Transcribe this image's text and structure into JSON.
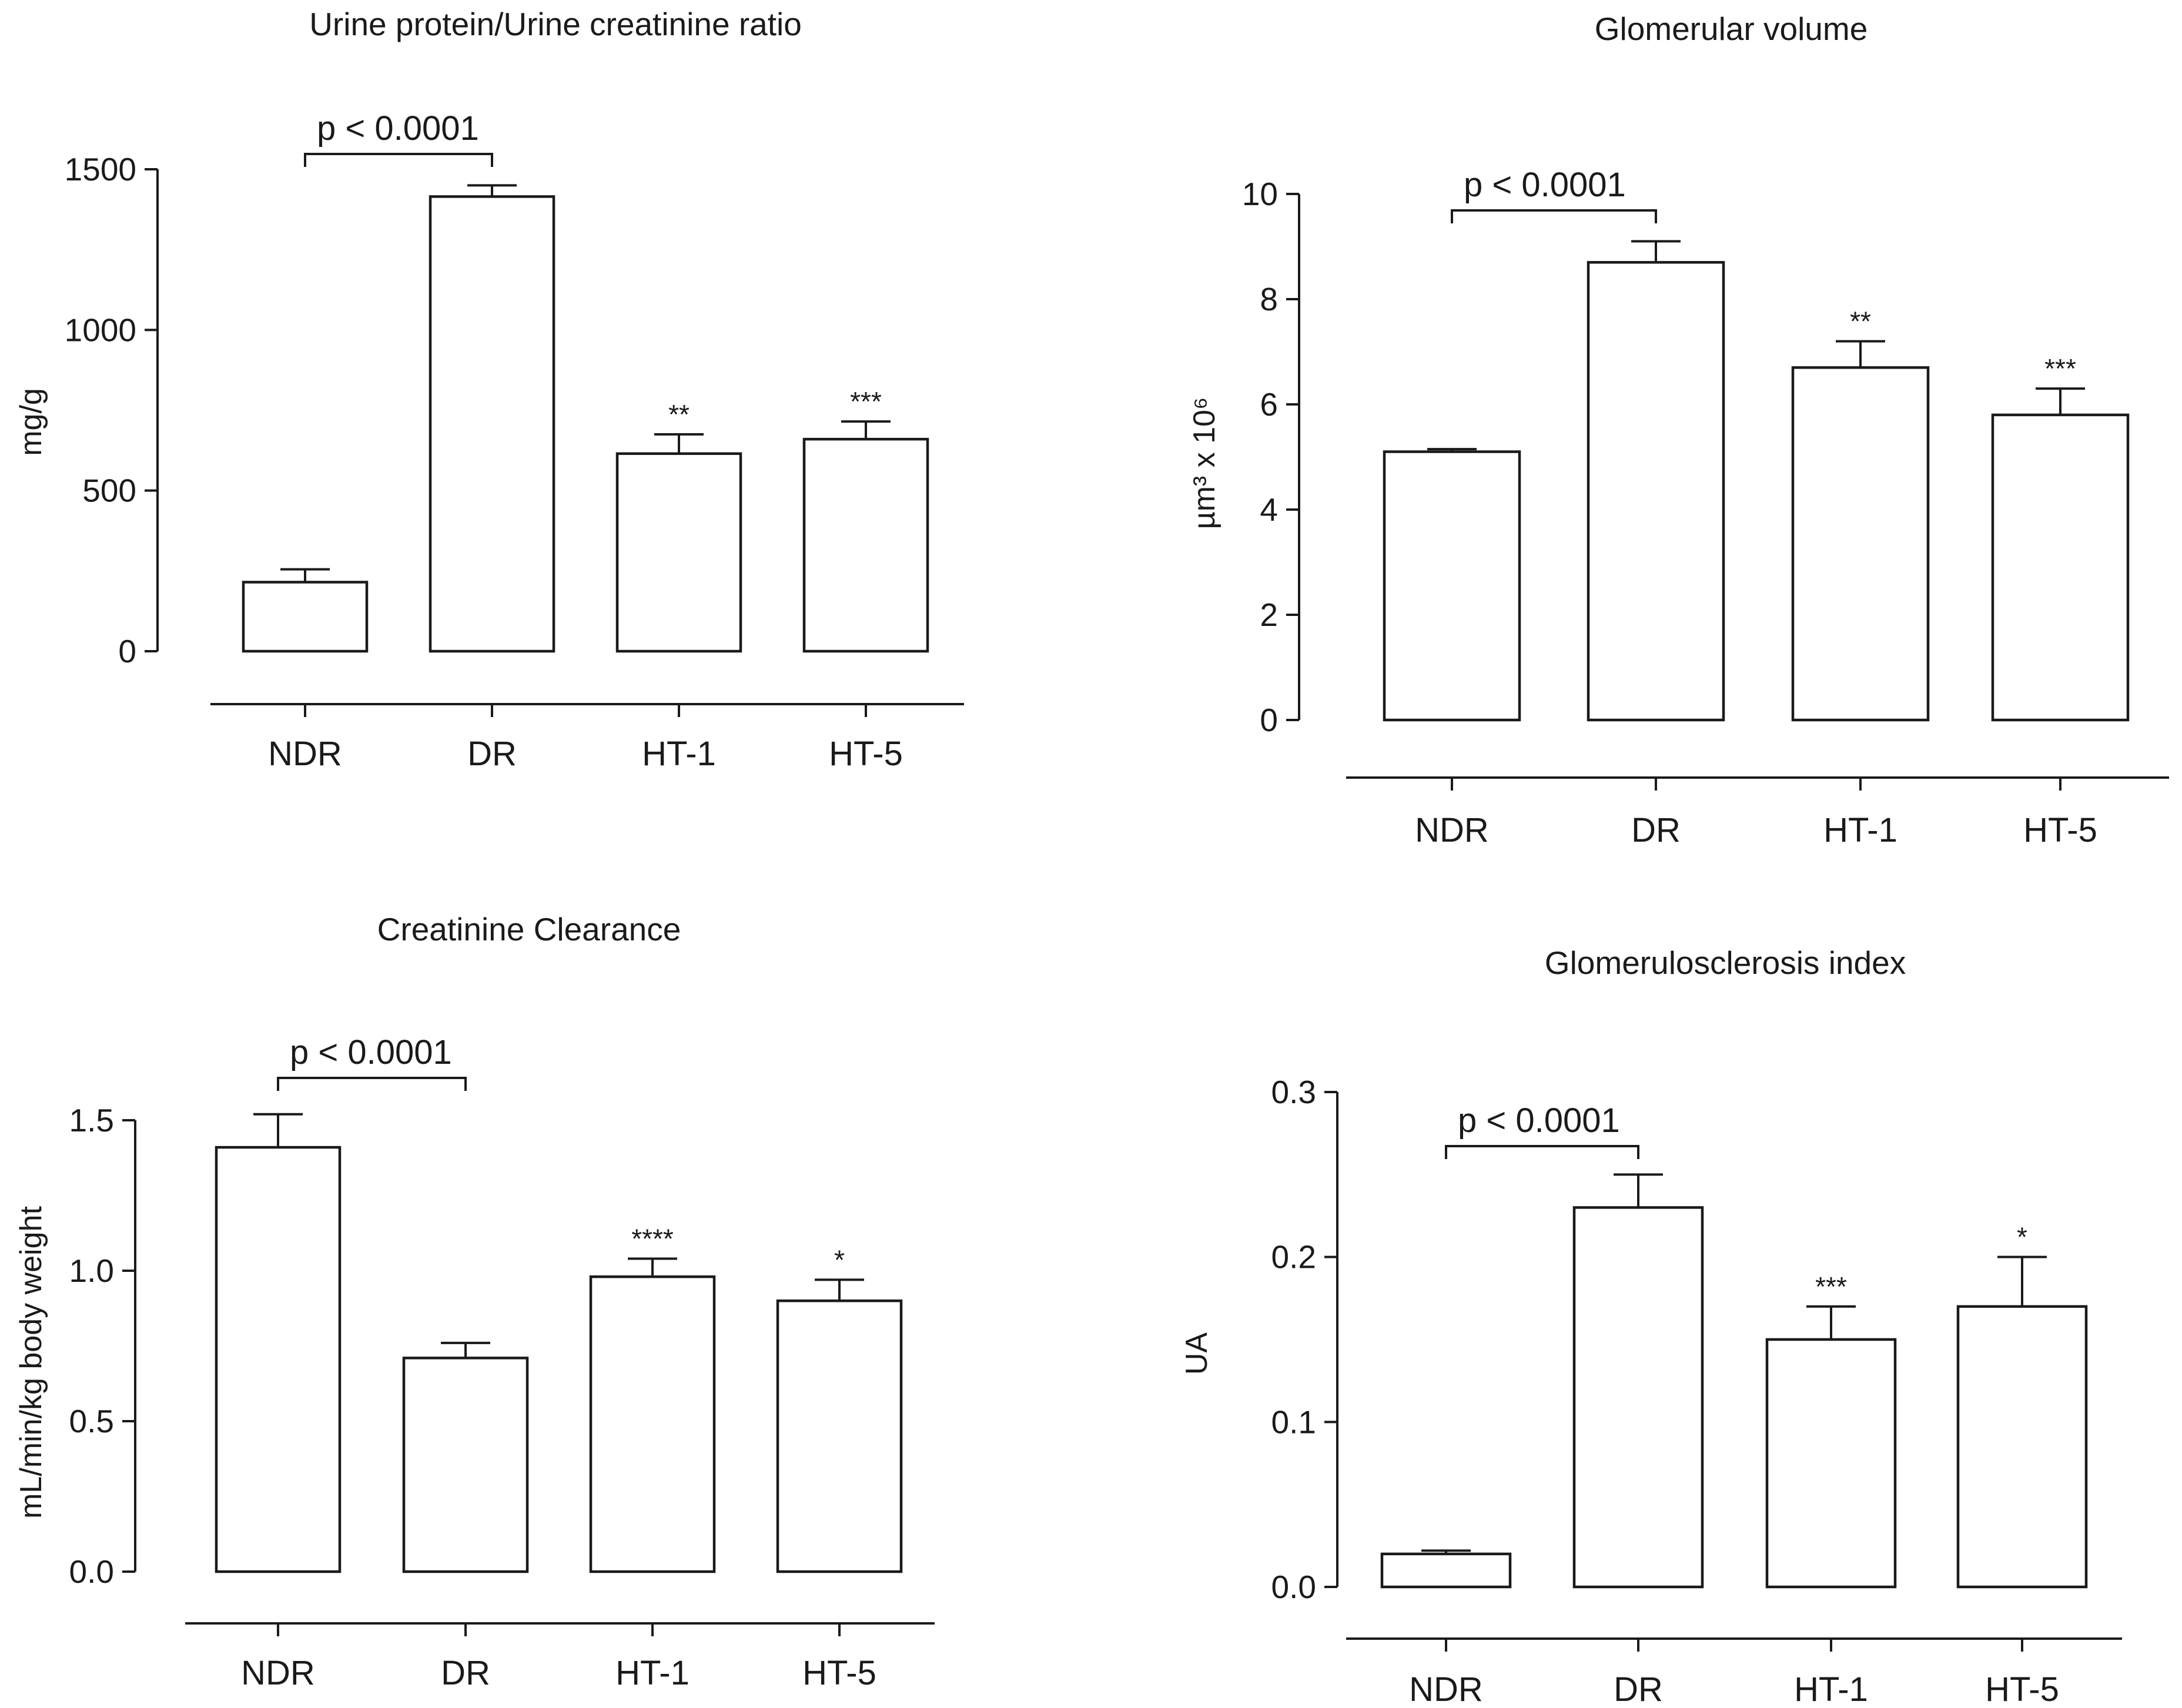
{
  "chart_data": [
    {
      "type": "bar",
      "title": "Urine protein/Urine creatinine ratio",
      "ylabel": "mg/g",
      "xlabel": "",
      "categories": [
        "NDR",
        "DR",
        "HT-1",
        "HT-5"
      ],
      "values": [
        215,
        1415,
        615,
        660
      ],
      "errors": [
        40,
        35,
        60,
        55
      ],
      "significance": [
        "",
        "",
        "**",
        "***"
      ],
      "ylim": [
        0,
        1500
      ],
      "yticks": [
        "0",
        "500",
        "1000",
        "1500"
      ],
      "comparison": {
        "from": "NDR",
        "to": "DR",
        "label": "p < 0.0001"
      }
    },
    {
      "type": "bar",
      "title": "Glomerular volume",
      "ylabel": "µm³ x 10⁶",
      "xlabel": "",
      "categories": [
        "NDR",
        "DR",
        "HT-1",
        "HT-5"
      ],
      "values": [
        5.1,
        8.7,
        6.7,
        5.8
      ],
      "errors": [
        0.05,
        0.4,
        0.5,
        0.5
      ],
      "significance": [
        "",
        "",
        "**",
        "***"
      ],
      "ylim": [
        0,
        10
      ],
      "yticks": [
        "0",
        "2",
        "4",
        "6",
        "8",
        "10"
      ],
      "comparison": {
        "from": "NDR",
        "to": "DR",
        "label": "p < 0.0001"
      }
    },
    {
      "type": "bar",
      "title": "Creatinine Clearance",
      "ylabel": "mL/min/kg body weight",
      "xlabel": "",
      "categories": [
        "NDR",
        "DR",
        "HT-1",
        "HT-5"
      ],
      "values": [
        1.41,
        0.71,
        0.98,
        0.9
      ],
      "errors": [
        0.11,
        0.05,
        0.06,
        0.07
      ],
      "significance": [
        "",
        "",
        "****",
        "*"
      ],
      "ylim": [
        0,
        1.5
      ],
      "yticks": [
        "0.0",
        "0.5",
        "1.0",
        "1.5"
      ],
      "comparison": {
        "from": "NDR",
        "to": "DR",
        "label": "p < 0.0001"
      }
    },
    {
      "type": "bar",
      "title": "Glomerulosclerosis index",
      "ylabel": "UA",
      "xlabel": "",
      "categories": [
        "NDR",
        "DR",
        "HT-1",
        "HT-5"
      ],
      "values": [
        0.02,
        0.23,
        0.15,
        0.17
      ],
      "errors": [
        0.002,
        0.02,
        0.02,
        0.03
      ],
      "significance": [
        "",
        "",
        "***",
        "*"
      ],
      "ylim": [
        0,
        0.3
      ],
      "yticks": [
        "0.0",
        "0.1",
        "0.2",
        "0.3"
      ],
      "comparison": {
        "from": "NDR",
        "to": "DR",
        "label": "p < 0.0001"
      }
    }
  ]
}
